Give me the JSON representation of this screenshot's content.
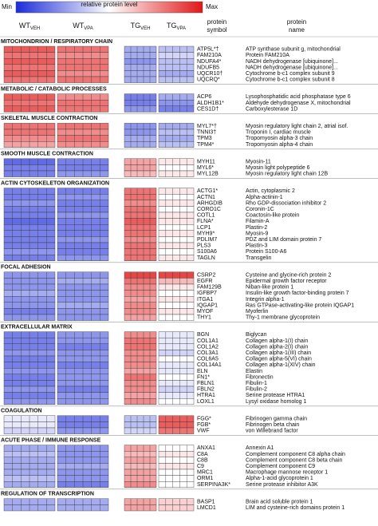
{
  "chart_data": {
    "type": "heatmap",
    "colorbar": {
      "label": "relative protein level",
      "min_label": "Min",
      "max_label": "Max"
    },
    "colors": [
      "#1c2cd8",
      "#ffffff",
      "#e01818"
    ],
    "zlim": [
      0,
      1
    ],
    "columns": [
      {
        "main": "WT",
        "sub": "VEH"
      },
      {
        "main": "WT",
        "sub": "VPA"
      },
      {
        "main": "TG",
        "sub": "VEH"
      },
      {
        "main": "TG",
        "sub": "VPA"
      }
    ],
    "symbol_header": [
      "protein",
      "symbol"
    ],
    "name_header": [
      "protein",
      "name"
    ],
    "sections": [
      {
        "title": "MITOCHONDRION / RESPIRATORY CHAIN",
        "rows": [
          {
            "symbol": "ATP5L*†",
            "name": "ATP synthase subunit g, mitochondrial",
            "values": [
              0.85,
              0.8,
              0.3,
              0.35
            ]
          },
          {
            "symbol": "FAM210A",
            "name": "Protein FAM210A",
            "values": [
              0.8,
              0.75,
              0.3,
              0.4
            ]
          },
          {
            "symbol": "NDUFA4*",
            "name": "NADH dehydrogenase [ubiquinone]...",
            "values": [
              0.85,
              0.8,
              0.25,
              0.35
            ]
          },
          {
            "symbol": "NDUFB5",
            "name": "NADH dehydrogenase [ubiquinone]...",
            "values": [
              0.8,
              0.8,
              0.3,
              0.35
            ]
          },
          {
            "symbol": "UQCR10†",
            "name": "Cytochrome b-c1 complex subunit 9",
            "values": [
              0.85,
              0.75,
              0.3,
              0.3
            ]
          },
          {
            "symbol": "UQCRQ*",
            "name": "Cytochrome b-c1 complex subunit 8",
            "values": [
              0.8,
              0.8,
              0.3,
              0.35
            ]
          }
        ]
      },
      {
        "title": "METABOLIC / CATABOLIC PROCESSES",
        "rows": [
          {
            "symbol": "ACP6",
            "name": "Lysophosphatidic acid phosphatase type 6",
            "values": [
              0.85,
              0.75,
              0.2,
              0.3
            ]
          },
          {
            "symbol": "ALDH1B1*",
            "name": "Aldehyde dehydrogenase X, mitochondrial",
            "values": [
              0.8,
              0.8,
              0.2,
              0.25
            ]
          },
          {
            "symbol": "CES1D†",
            "name": "Carboxylesterase 1D",
            "values": [
              0.85,
              0.8,
              0.25,
              0.2
            ]
          }
        ]
      },
      {
        "title": "SKELETAL MUSCLE CONTRACTION",
        "rows": [
          {
            "symbol": "MYL7*†",
            "name": "Myosin regulatory light chain 2, atrial isof.",
            "values": [
              0.8,
              0.8,
              0.25,
              0.3
            ]
          },
          {
            "symbol": "TNNI3†",
            "name": "Troponin I, cardiac muscle",
            "values": [
              0.8,
              0.75,
              0.25,
              0.35
            ]
          },
          {
            "symbol": "TPM3",
            "name": "Tropomyosin alpha-3 chain",
            "values": [
              0.75,
              0.8,
              0.3,
              0.3
            ]
          },
          {
            "symbol": "TPM4*",
            "name": "Tropomyosin alpha-4 chain",
            "values": [
              0.7,
              0.75,
              0.3,
              0.35
            ]
          }
        ]
      },
      {
        "title": "SMOOTH MUSCLE CONTRACTION",
        "rows": [
          {
            "symbol": "MYH11",
            "name": "Myosin-11",
            "values": [
              0.15,
              0.2,
              0.7,
              0.55
            ]
          },
          {
            "symbol": "MYL6*",
            "name": "Myosin light polypeptide 6",
            "values": [
              0.2,
              0.2,
              0.7,
              0.5
            ]
          },
          {
            "symbol": "MYL12B",
            "name": "Myosin regulatory light chain 12B",
            "values": [
              0.2,
              0.25,
              0.65,
              0.55
            ]
          }
        ]
      },
      {
        "title": "ACTIN CYTOSKELETON ORGANIZATION",
        "rows": [
          {
            "symbol": "ACTG1*",
            "name": "Actin, cytoplasmic 2",
            "values": [
              0.2,
              0.2,
              0.8,
              0.55
            ]
          },
          {
            "symbol": "ACTN1",
            "name": "Alpha-actinin-1",
            "values": [
              0.2,
              0.25,
              0.8,
              0.5
            ]
          },
          {
            "symbol": "ARHGDIB",
            "name": "Rho GDP-dissociation inhibitor 2",
            "values": [
              0.25,
              0.2,
              0.75,
              0.55
            ]
          },
          {
            "symbol": "CORO1C",
            "name": "Coronin-1C",
            "values": [
              0.2,
              0.2,
              0.8,
              0.5
            ]
          },
          {
            "symbol": "COTL1",
            "name": "Coactosin-like protein",
            "values": [
              0.2,
              0.25,
              0.8,
              0.55
            ]
          },
          {
            "symbol": "FLNA*",
            "name": "Filamin-A",
            "values": [
              0.15,
              0.2,
              0.85,
              0.55
            ]
          },
          {
            "symbol": "LCP1",
            "name": "Plastin-2",
            "values": [
              0.2,
              0.2,
              0.8,
              0.5
            ]
          },
          {
            "symbol": "MYH9*",
            "name": "Myosin-9",
            "values": [
              0.2,
              0.2,
              0.8,
              0.55
            ]
          },
          {
            "symbol": "PDLIM7",
            "name": "PDZ and LIM domain protein 7",
            "values": [
              0.2,
              0.25,
              0.75,
              0.5
            ]
          },
          {
            "symbol": "PLS3",
            "name": "Plastin-3",
            "values": [
              0.2,
              0.2,
              0.8,
              0.55
            ]
          },
          {
            "symbol": "S100A6",
            "name": "Protein S100-A6",
            "values": [
              0.25,
              0.2,
              0.8,
              0.5
            ]
          },
          {
            "symbol": "TAGLN",
            "name": "Transgelin",
            "values": [
              0.2,
              0.25,
              0.8,
              0.55
            ]
          }
        ]
      },
      {
        "title": "FOCAL ADHESION",
        "rows": [
          {
            "symbol": "CSRP2",
            "name": "Cysteine and glycine-rich protein 2",
            "values": [
              0.25,
              0.25,
              0.9,
              0.9
            ]
          },
          {
            "symbol": "EGFR",
            "name": "Epidermal growth factor receptor",
            "values": [
              0.25,
              0.3,
              0.8,
              0.65
            ]
          },
          {
            "symbol": "FAM129B",
            "name": "Niban-like protein 1",
            "values": [
              0.25,
              0.25,
              0.75,
              0.55
            ]
          },
          {
            "symbol": "IGFBP7",
            "name": "Insulin-like growth factor-binding protein 7",
            "values": [
              0.3,
              0.25,
              0.75,
              0.5
            ]
          },
          {
            "symbol": "ITGA1",
            "name": "Integrin alpha-1",
            "values": [
              0.25,
              0.25,
              0.7,
              0.55
            ]
          },
          {
            "symbol": "IQGAP1",
            "name": "Ras GTPase-activating-like protein IQGAP1",
            "values": [
              0.25,
              0.3,
              0.75,
              0.5
            ]
          },
          {
            "symbol": "MYOF",
            "name": "Myoferlin",
            "values": [
              0.2,
              0.25,
              0.75,
              0.55
            ]
          },
          {
            "symbol": "THY1",
            "name": "Thy-1 membrane glycoprotein",
            "values": [
              0.25,
              0.25,
              0.7,
              0.5
            ]
          }
        ]
      },
      {
        "title": "EXTRACELLULAR MATRIX",
        "rows": [
          {
            "symbol": "BGN",
            "name": "Biglycan",
            "values": [
              0.2,
              0.25,
              0.75,
              0.45
            ]
          },
          {
            "symbol": "COL1A1",
            "name": "Collagen alpha-1(I) chain",
            "values": [
              0.2,
              0.25,
              0.8,
              0.45
            ]
          },
          {
            "symbol": "COL1A2",
            "name": "Collagen alpha-2(I) chain",
            "values": [
              0.2,
              0.2,
              0.8,
              0.45
            ]
          },
          {
            "symbol": "COL3A1",
            "name": "Collagen alpha-1(III) chain",
            "values": [
              0.25,
              0.25,
              0.75,
              0.4
            ]
          },
          {
            "symbol": "COL6A5",
            "name": "Collagen alpha-5(VI) chain",
            "values": [
              0.2,
              0.25,
              0.75,
              0.5
            ]
          },
          {
            "symbol": "COL14A1",
            "name": "Collagen alpha-1(XIV) chain",
            "values": [
              0.2,
              0.2,
              0.75,
              0.45
            ]
          },
          {
            "symbol": "ELN",
            "name": "Elastin",
            "values": [
              0.25,
              0.25,
              0.7,
              0.45
            ]
          },
          {
            "symbol": "FN1*",
            "name": "Fibronectin",
            "values": [
              0.2,
              0.25,
              0.8,
              0.5
            ]
          },
          {
            "symbol": "FBLN1",
            "name": "Fibulin-1",
            "values": [
              0.2,
              0.25,
              0.75,
              0.45
            ]
          },
          {
            "symbol": "FBLN2",
            "name": "Fibulin-2",
            "values": [
              0.25,
              0.2,
              0.75,
              0.4
            ]
          },
          {
            "symbol": "HTRA1",
            "name": "Serine protease HTRA1",
            "values": [
              0.2,
              0.25,
              0.7,
              0.45
            ]
          },
          {
            "symbol": "LOXL1",
            "name": "Lysyl oxidase homolog 1",
            "values": [
              0.25,
              0.25,
              0.75,
              0.5
            ]
          }
        ]
      },
      {
        "title": "COAGULATION",
        "rows": [
          {
            "symbol": "FGG*",
            "name": "Fibrinogen gamma chain",
            "values": [
              0.45,
              0.2,
              0.35,
              0.85
            ]
          },
          {
            "symbol": "FGB*",
            "name": "Fibrinogen beta chain",
            "values": [
              0.45,
              0.2,
              0.35,
              0.85
            ]
          },
          {
            "symbol": "VWF",
            "name": "von Willebrand factor",
            "values": [
              0.4,
              0.25,
              0.4,
              0.8
            ]
          }
        ]
      },
      {
        "title": "ACUTE PHASE / IMMUNE RESPONSE",
        "rows": [
          {
            "symbol": "ANXA1",
            "name": "Annexin A1",
            "values": [
              0.3,
              0.25,
              0.7,
              0.5
            ]
          },
          {
            "symbol": "C8A",
            "name": "Complement component C8 alpha chain",
            "values": [
              0.35,
              0.25,
              0.65,
              0.55
            ]
          },
          {
            "symbol": "C8B",
            "name": "Complement component C8 beta chain",
            "values": [
              0.3,
              0.25,
              0.7,
              0.5
            ]
          },
          {
            "symbol": "C9",
            "name": "Complement component C9",
            "values": [
              0.3,
              0.3,
              0.65,
              0.55
            ]
          },
          {
            "symbol": "MRC1",
            "name": "Macrophage mannose receptor 1",
            "values": [
              0.3,
              0.25,
              0.7,
              0.5
            ]
          },
          {
            "symbol": "ORM1",
            "name": "Alpha-1-acid glycoprotein 1",
            "values": [
              0.35,
              0.25,
              0.7,
              0.5
            ]
          },
          {
            "symbol": "SERPINA3K*",
            "name": "Serine protease inhibitor A3K",
            "values": [
              0.3,
              0.2,
              0.75,
              0.5
            ]
          }
        ]
      },
      {
        "title": "REGULATION OF TRANSCRIPTION",
        "rows": [
          {
            "symbol": "BASP1",
            "name": "Brain acid soluble protein 1",
            "values": [
              0.3,
              0.3,
              0.7,
              0.6
            ]
          },
          {
            "symbol": "LMCD1",
            "name": "LIM and cysteine-rich domains protein 1",
            "values": [
              0.3,
              0.3,
              0.7,
              0.6
            ]
          }
        ]
      }
    ]
  }
}
